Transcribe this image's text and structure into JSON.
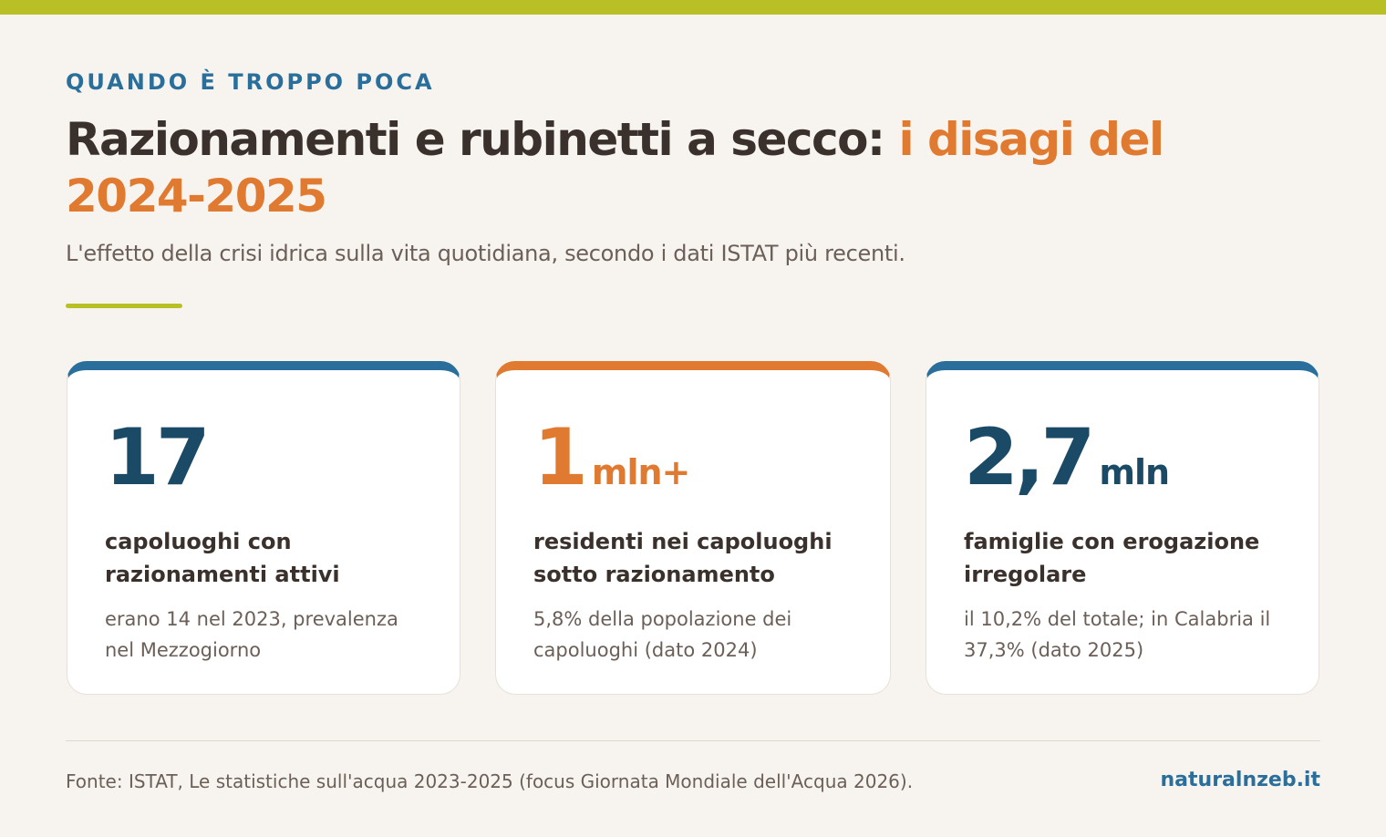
{
  "header": {
    "kicker": "QUANDO È TROPPO POCA",
    "title_main": "Razionamenti e rubinetti a secco: ",
    "title_accent": "i disagi del 2024-2025",
    "subtitle": "L'effetto della crisi idrica sulla vita quotidiana, secondo i dati ISTAT più recenti."
  },
  "cards": [
    {
      "value": "17",
      "label": "capoluoghi con razionamenti attivi",
      "note": "erano 14 nel 2023, prevalenza nel Mezzogiorno"
    },
    {
      "value": "1",
      "unit": "mln+",
      "label": "residenti nei capoluoghi sotto razionamento",
      "note": "5,8% della popolazione dei capoluoghi (dato 2024)"
    },
    {
      "value": "2,7",
      "unit": "mln",
      "label": "famiglie con erogazione irregolare",
      "note": "il 10,2% del totale; in Calabria il 37,3% (dato 2025)"
    }
  ],
  "footer": {
    "source": "Fonte: ISTAT, Le statistiche sull'acqua 2023-2025 (focus Giornata Mondiale dell'Acqua 2026).",
    "brand": "naturalnzeb.it"
  }
}
